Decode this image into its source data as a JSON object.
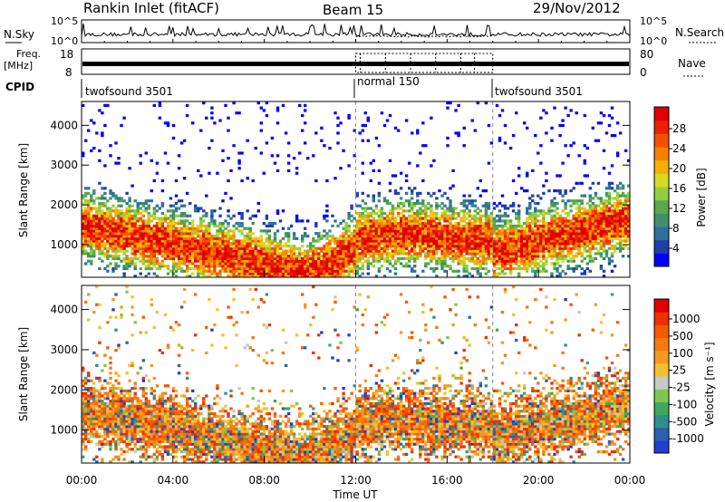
{
  "header": {
    "station": "Rankin Inlet (fitACF)",
    "beam": "Beam 15",
    "date": "29/Nov/2012"
  },
  "noise_panel": {
    "left_label": "N.Sky",
    "right_label": "N.Search",
    "left_ticks": [
      "10^5",
      "10^0"
    ],
    "right_ticks": [
      "10^5",
      "10^0"
    ]
  },
  "freq_panel": {
    "left_label_1": "Freq.",
    "left_label_2": "[MHz]",
    "right_label": "Nave",
    "left_ticks": [
      "18",
      "8"
    ],
    "right_ticks": [
      "80",
      "0"
    ]
  },
  "cpid_panel": {
    "label": "CPID",
    "segments": [
      {
        "name": "twofsound 3501",
        "start_hour": 0,
        "end_hour": 12
      },
      {
        "name": "normal 150",
        "start_hour": 12,
        "end_hour": 18
      },
      {
        "name": "twofsound 3501",
        "start_hour": 18,
        "end_hour": 24
      }
    ]
  },
  "chart_data": [
    {
      "type": "heatmap",
      "panel": "power",
      "ylabel": "Slant Range [km]",
      "xlabel": "Time UT",
      "y_ticks": [
        "1000",
        "2000",
        "3000",
        "4000"
      ],
      "ylim": [
        180,
        4600
      ],
      "xlim": [
        0,
        24
      ],
      "colorbar": {
        "label": "Power [dB]",
        "range": [
          0,
          30
        ],
        "ticks": [
          "28",
          "24",
          "20",
          "16",
          "12",
          "8",
          "4"
        ],
        "colors": [
          "#0000ff",
          "#1f3fa8",
          "#2f6f9f",
          "#3f8f6f",
          "#59a84a",
          "#8fcf3f",
          "#d8d820",
          "#f5b000",
          "#f58000",
          "#f55000",
          "#ee2000",
          "#e00000"
        ]
      }
    },
    {
      "type": "heatmap",
      "panel": "velocity",
      "ylabel": "Slant Range [km]",
      "xlabel": "Time UT",
      "y_ticks": [
        "1000",
        "2000",
        "3000",
        "4000"
      ],
      "ylim": [
        180,
        4600
      ],
      "xlim": [
        0,
        24
      ],
      "colorbar": {
        "label": "Velocity [m s⁻¹]",
        "ticks": [
          "1000",
          "500",
          "100",
          "25",
          "-25",
          "-100",
          "-500",
          "-1000"
        ],
        "colors": [
          "#1f3fd0",
          "#2f5fb0",
          "#2f8f8f",
          "#3fa85f",
          "#7fc84f",
          "#c8c8c8",
          "#f5c030",
          "#f59a20",
          "#f57a10",
          "#f55a00",
          "#ee3000",
          "#e00000"
        ]
      }
    }
  ],
  "time_axis": {
    "ticks": [
      "00:00",
      "04:00",
      "08:00",
      "12:00",
      "16:00",
      "20:00",
      "00:00"
    ],
    "label": "Time UT"
  }
}
